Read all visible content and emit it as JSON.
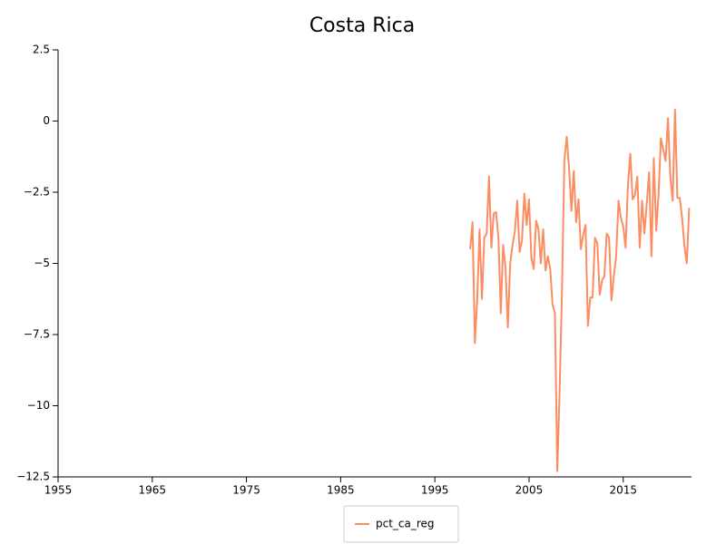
{
  "chart_data": {
    "type": "line",
    "title": "Costa Rica",
    "x": [
      1998.75,
      1999,
      1999.25,
      1999.5,
      1999.75,
      2000,
      2000.25,
      2000.5,
      2000.75,
      2001,
      2001.25,
      2001.5,
      2001.75,
      2002,
      2002.25,
      2002.5,
      2002.75,
      2003,
      2003.25,
      2003.5,
      2003.75,
      2004,
      2004.25,
      2004.5,
      2004.75,
      2005,
      2005.25,
      2005.5,
      2005.75,
      2006,
      2006.25,
      2006.5,
      2006.75,
      2007,
      2007.25,
      2007.5,
      2007.75,
      2008,
      2008.25,
      2008.5,
      2008.75,
      2009,
      2009.25,
      2009.5,
      2009.75,
      2010,
      2010.25,
      2010.5,
      2010.75,
      2011,
      2011.25,
      2011.5,
      2011.75,
      2012,
      2012.25,
      2012.5,
      2012.75,
      2013,
      2013.25,
      2013.5,
      2013.75,
      2014,
      2014.25,
      2014.5,
      2014.75,
      2015,
      2015.25,
      2015.5,
      2015.75,
      2016,
      2016.25,
      2016.5,
      2016.75,
      2017,
      2017.25,
      2017.5,
      2017.75,
      2018,
      2018.25,
      2018.5,
      2018.75,
      2019,
      2019.25,
      2019.5,
      2019.75,
      2020,
      2020.25,
      2020.5,
      2020.75,
      2021,
      2021.25,
      2021.5,
      2021.75,
      2022
    ],
    "series": [
      {
        "name": "pct_ca_reg",
        "color": "#fc8d62",
        "values": [
          -4.5,
          -3.55,
          -7.8,
          -6.25,
          -3.8,
          -6.25,
          -4.1,
          -3.95,
          -1.95,
          -4.45,
          -3.25,
          -3.2,
          -4.1,
          -6.75,
          -4.35,
          -5.15,
          -7.25,
          -5.0,
          -4.35,
          -3.85,
          -2.8,
          -4.6,
          -4.2,
          -2.55,
          -3.65,
          -2.75,
          -4.8,
          -5.2,
          -3.5,
          -3.8,
          -5.0,
          -3.8,
          -5.25,
          -4.75,
          -5.2,
          -6.45,
          -6.75,
          -12.3,
          -9.45,
          -5.95,
          -1.4,
          -0.55,
          -1.65,
          -3.15,
          -1.75,
          -3.55,
          -2.75,
          -4.5,
          -4.0,
          -3.65,
          -7.2,
          -6.2,
          -6.2,
          -4.1,
          -4.3,
          -6.1,
          -5.6,
          -5.45,
          -3.95,
          -4.1,
          -6.3,
          -5.45,
          -4.75,
          -2.8,
          -3.4,
          -3.7,
          -4.45,
          -2.25,
          -1.15,
          -2.75,
          -2.6,
          -1.95,
          -4.45,
          -2.8,
          -3.95,
          -2.9,
          -1.8,
          -4.75,
          -1.3,
          -3.85,
          -2.6,
          -0.6,
          -1.0,
          -1.4,
          0.1,
          -1.95,
          -2.8,
          0.4,
          -2.7,
          -2.7,
          -3.4,
          -4.4,
          -5.0,
          -3.05
        ]
      }
    ],
    "xlim": [
      1955,
      2022.25
    ],
    "xticks": [
      1955,
      1965,
      1975,
      1985,
      1995,
      2005,
      2015
    ],
    "ylim": [
      -12.5,
      2.5
    ],
    "yticks": [
      2.5,
      0,
      {
        "value": -2.5,
        "label": "−2.5"
      },
      {
        "value": -5,
        "label": "−5"
      },
      {
        "value": -7.5,
        "label": "−7.5"
      },
      {
        "value": -10,
        "label": "−10"
      },
      {
        "value": -12.5,
        "label": "−12.5"
      }
    ],
    "legend": "bottom"
  }
}
